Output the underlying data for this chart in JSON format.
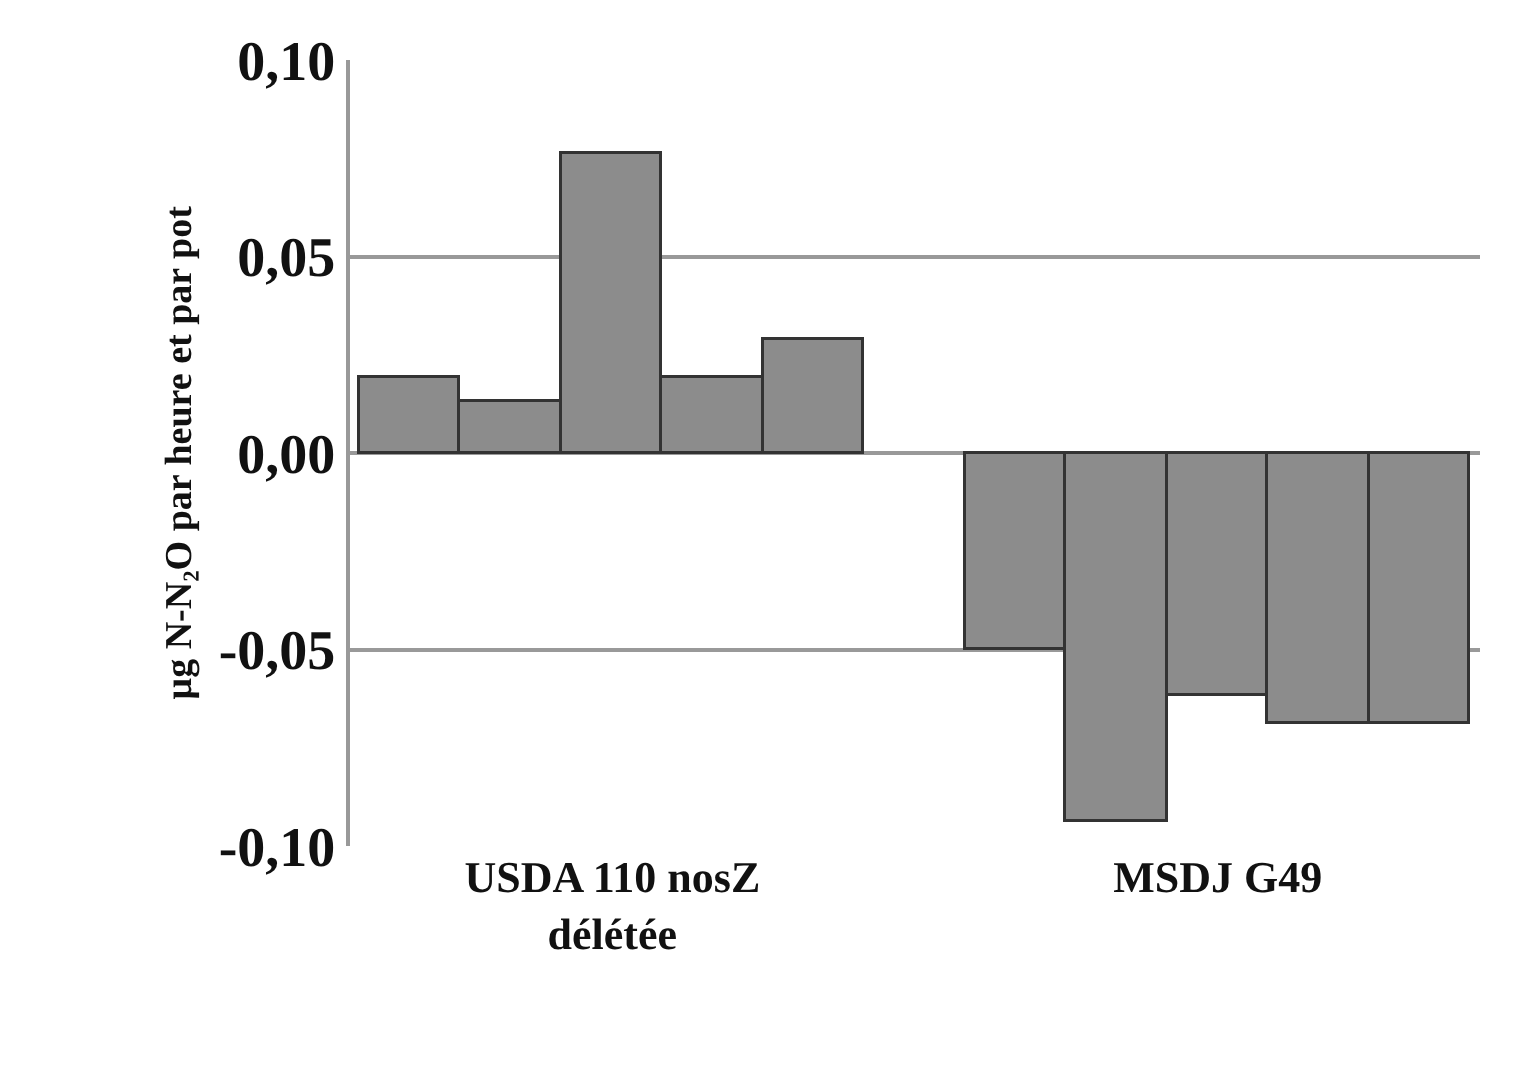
{
  "chart_data": {
    "type": "bar",
    "ylabel": "µg N-N₂O par heure et par pot",
    "categories": [
      null,
      null,
      "USDA 110 nosZ délétée",
      null,
      null,
      null,
      null,
      null,
      "MSDJ G49",
      null,
      null
    ],
    "series": [
      {
        "color": "#8c8c8c",
        "values": [
          0.019,
          0.013,
          0.076,
          0.019,
          0.029,
          null,
          -0.05,
          -0.094,
          -0.062,
          -0.069,
          -0.069
        ]
      }
    ],
    "ylim": [
      -0.1,
      0.1
    ],
    "yticks": [
      {
        "value": 0.1,
        "label": "0,10"
      },
      {
        "value": 0.05,
        "label": "0,05"
      },
      {
        "value": 0,
        "label": "0,00"
      },
      {
        "value": -0.05,
        "label": "-0,05"
      },
      {
        "value": -0.1,
        "label": "-0,10"
      }
    ],
    "grid": "y"
  }
}
